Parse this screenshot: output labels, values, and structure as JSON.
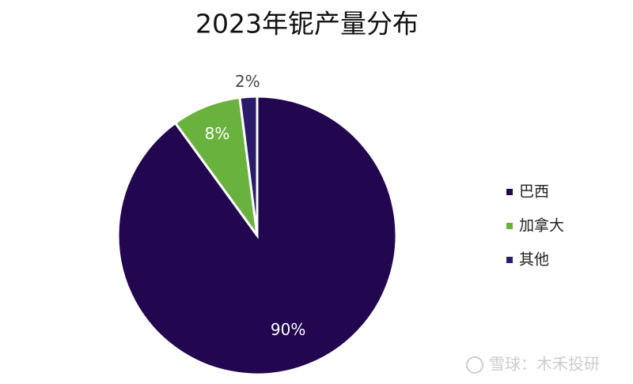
{
  "chart_data": {
    "type": "pie",
    "title": "2023年铌产量分布",
    "categories": [
      "巴西",
      "加拿大",
      "其他"
    ],
    "values": [
      90,
      8,
      2
    ],
    "value_labels": [
      "90%",
      "8%",
      "2%"
    ],
    "colors": [
      "#22064f",
      "#6ab23e",
      "#2b1b6b"
    ],
    "legend": "right"
  },
  "watermark": "雪球：木禾投研"
}
